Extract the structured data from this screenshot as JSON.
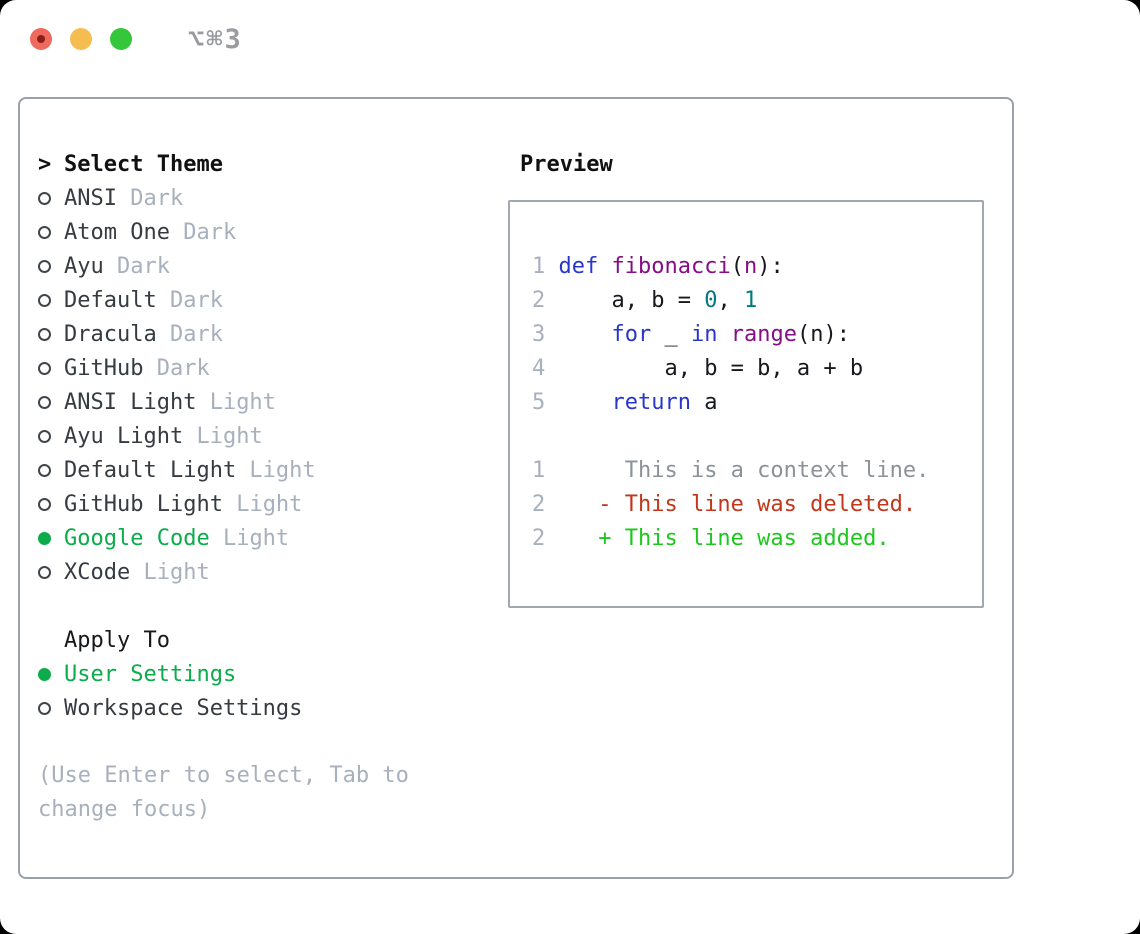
{
  "window": {
    "title": "⌥⌘3",
    "traffic_lights": [
      "close",
      "minimize",
      "zoom"
    ]
  },
  "colors": {
    "selected_green": "#0cab4c",
    "diff_added_green": "#1ec71e",
    "diff_deleted_red": "#c2361b",
    "keyword_blue": "#2836cc",
    "function_purple": "#870c87",
    "literal_teal": "#007a7c",
    "line_number_gray": "#a7b0bd",
    "context_gray": "#8b9299",
    "muted_gray": "#a7b0bd",
    "text_dark": "#363b41",
    "border_gray": "#99a1ac"
  },
  "theme_panel": {
    "prompt": ">",
    "title": "Select Theme",
    "themes": [
      {
        "name": "ANSI",
        "variant": "Dark",
        "selected": false
      },
      {
        "name": "Atom One",
        "variant": "Dark",
        "selected": false
      },
      {
        "name": "Ayu",
        "variant": "Dark",
        "selected": false
      },
      {
        "name": "Default",
        "variant": "Dark",
        "selected": false
      },
      {
        "name": "Dracula",
        "variant": "Dark",
        "selected": false
      },
      {
        "name": "GitHub",
        "variant": "Dark",
        "selected": false
      },
      {
        "name": "ANSI Light",
        "variant": "Light",
        "selected": false
      },
      {
        "name": "Ayu Light",
        "variant": "Light",
        "selected": false
      },
      {
        "name": "Default Light",
        "variant": "Light",
        "selected": false
      },
      {
        "name": "GitHub Light",
        "variant": "Light",
        "selected": false
      },
      {
        "name": "Google Code",
        "variant": "Light",
        "selected": true
      },
      {
        "name": "XCode",
        "variant": "Light",
        "selected": false
      }
    ],
    "apply_to": {
      "title": "Apply To",
      "options": [
        {
          "name": "User Settings",
          "selected": true
        },
        {
          "name": "Workspace Settings",
          "selected": false
        }
      ]
    },
    "hint": "(Use Enter to select, Tab to change focus)"
  },
  "preview": {
    "title": "Preview",
    "code_lines": [
      {
        "segments": [
          {
            "t": "1 ",
            "c": "num"
          },
          {
            "t": "def",
            "c": "kw"
          },
          {
            "t": " ",
            "c": "pln"
          },
          {
            "t": "fibonacci",
            "c": "fn"
          },
          {
            "t": "(",
            "c": "pln"
          },
          {
            "t": "n",
            "c": "fn"
          },
          {
            "t": "):",
            "c": "pln"
          }
        ]
      },
      {
        "segments": [
          {
            "t": "2 ",
            "c": "num"
          },
          {
            "t": "    a, b = ",
            "c": "pln"
          },
          {
            "t": "0",
            "c": "lit"
          },
          {
            "t": ", ",
            "c": "pln"
          },
          {
            "t": "1",
            "c": "lit"
          }
        ]
      },
      {
        "segments": [
          {
            "t": "3 ",
            "c": "num"
          },
          {
            "t": "    ",
            "c": "pln"
          },
          {
            "t": "for",
            "c": "kw"
          },
          {
            "t": " _ ",
            "c": "pln"
          },
          {
            "t": "in",
            "c": "kw"
          },
          {
            "t": " ",
            "c": "pln"
          },
          {
            "t": "range",
            "c": "fn"
          },
          {
            "t": "(n):",
            "c": "pln"
          }
        ]
      },
      {
        "segments": [
          {
            "t": "4 ",
            "c": "num"
          },
          {
            "t": "        a, b = b, a + b",
            "c": "pln"
          }
        ]
      },
      {
        "segments": [
          {
            "t": "5 ",
            "c": "num"
          },
          {
            "t": "    ",
            "c": "pln"
          },
          {
            "t": "return",
            "c": "kw"
          },
          {
            "t": " a",
            "c": "pln"
          }
        ]
      }
    ],
    "diff_lines": [
      {
        "segments": [
          {
            "t": "1",
            "c": "num"
          },
          {
            "t": "      This is a context line.",
            "c": "ctx"
          }
        ]
      },
      {
        "segments": [
          {
            "t": "2",
            "c": "num"
          },
          {
            "t": "    - This line was deleted.",
            "c": "del"
          }
        ]
      },
      {
        "segments": [
          {
            "t": "2",
            "c": "num"
          },
          {
            "t": "    + This line was added.",
            "c": "add"
          }
        ]
      }
    ]
  }
}
